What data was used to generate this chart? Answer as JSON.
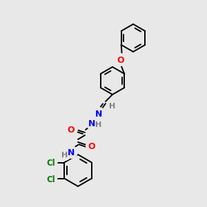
{
  "background_color": "#e8e8e8",
  "bond_color": "#000000",
  "atom_colors": {
    "O": "#ff0000",
    "N": "#0000ff",
    "Cl": "#008000",
    "H": "#808080",
    "C": "#000000"
  },
  "fig_w": 3.0,
  "fig_h": 3.0,
  "dpi": 100
}
